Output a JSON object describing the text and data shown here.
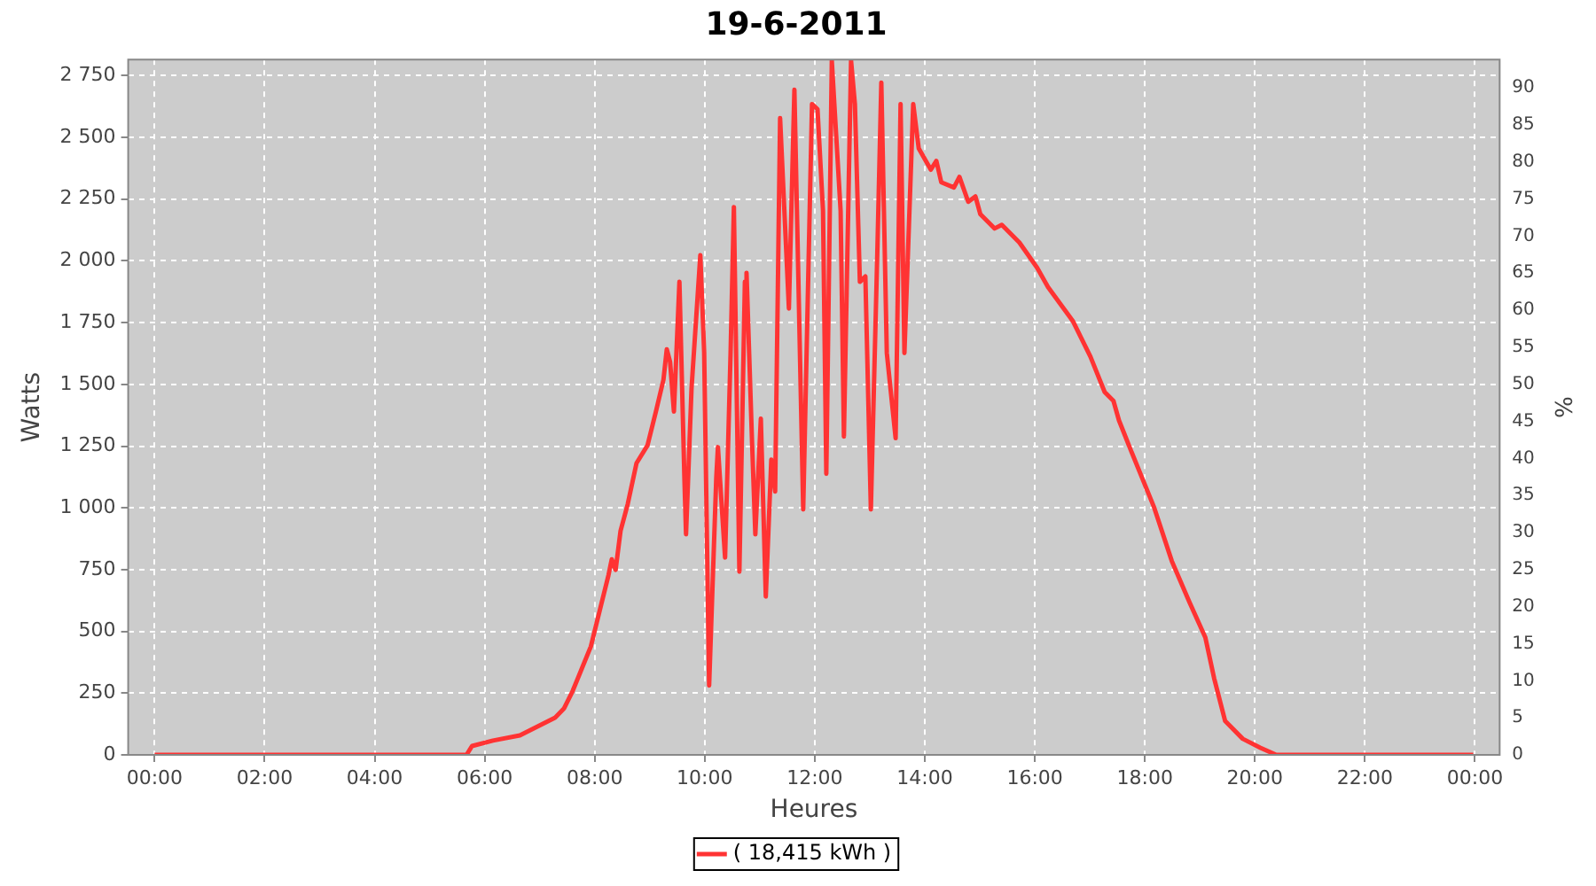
{
  "chart_data": {
    "type": "line",
    "title": "19-6-2011",
    "xlabel": "Heures",
    "ylabel": "Watts",
    "y2label": "%",
    "xlim": [
      -0.48,
      24.45
    ],
    "xticks": [
      {
        "value": 0,
        "label": "00:00"
      },
      {
        "value": 2,
        "label": "02:00"
      },
      {
        "value": 4,
        "label": "04:00"
      },
      {
        "value": 6,
        "label": "06:00"
      },
      {
        "value": 8,
        "label": "08:00"
      },
      {
        "value": 10,
        "label": "10:00"
      },
      {
        "value": 12,
        "label": "12:00"
      },
      {
        "value": 14,
        "label": "14:00"
      },
      {
        "value": 16,
        "label": "16:00"
      },
      {
        "value": 18,
        "label": "18:00"
      },
      {
        "value": 20,
        "label": "20:00"
      },
      {
        "value": 22,
        "label": "22:00"
      },
      {
        "value": 24,
        "label": "00:00"
      }
    ],
    "ylim": [
      0,
      2815
    ],
    "yticks": [
      0,
      250,
      500,
      750,
      {
        "value": 1000,
        "label": "1 000"
      },
      {
        "value": 1250,
        "label": "1 250"
      },
      {
        "value": 1500,
        "label": "1 500"
      },
      {
        "value": 1750,
        "label": "1 750"
      },
      {
        "value": 2000,
        "label": "2 000"
      },
      {
        "value": 2250,
        "label": "2 250"
      },
      {
        "value": 2500,
        "label": "2 500"
      },
      {
        "value": 2750,
        "label": "2 750"
      }
    ],
    "y2lim": [
      0,
      93.8
    ],
    "y2ticks": [
      0,
      5,
      10,
      15,
      20,
      25,
      30,
      35,
      40,
      45,
      50,
      55,
      60,
      65,
      70,
      75,
      80,
      85,
      90
    ],
    "grid": true,
    "legend": "bottom",
    "marker": "none",
    "line_style": "solid",
    "series": [
      {
        "name": "( 18,415 kWh )",
        "color": "#ff3333",
        "x": [
          0,
          5.67,
          5.77,
          6.15,
          6.64,
          6.96,
          7.28,
          7.44,
          7.6,
          7.76,
          7.93,
          8.09,
          8.25,
          8.31,
          8.38,
          8.47,
          8.6,
          8.76,
          8.96,
          9.12,
          9.25,
          9.31,
          9.37,
          9.44,
          9.54,
          9.63,
          9.66,
          9.76,
          9.92,
          9.99,
          10.08,
          10.21,
          10.24,
          10.37,
          10.47,
          10.53,
          10.63,
          10.73,
          10.76,
          10.86,
          10.92,
          11.02,
          11.11,
          11.21,
          11.28,
          11.37,
          11.53,
          11.63,
          11.79,
          11.95,
          12.05,
          12.15,
          12.21,
          12.31,
          12.47,
          12.53,
          12.66,
          12.73,
          12.82,
          12.92,
          13.02,
          13.14,
          13.21,
          13.31,
          13.47,
          13.56,
          13.63,
          13.79,
          13.89,
          14.11,
          14.21,
          14.3,
          14.53,
          14.63,
          14.79,
          14.92,
          15.01,
          15.27,
          15.4,
          15.72,
          16.04,
          16.24,
          16.69,
          17.01,
          17.27,
          17.43,
          17.53,
          17.75,
          18.17,
          18.49,
          18.81,
          19.1,
          19.26,
          19.46,
          19.78,
          20.1,
          20.39,
          23.97
        ],
        "values": [
          0,
          0,
          36,
          58,
          79,
          115,
          151,
          187,
          259,
          346,
          439,
          583,
          727,
          792,
          749,
          907,
          1015,
          1181,
          1253,
          1397,
          1519,
          1642,
          1591,
          1390,
          1915,
          1123,
          893,
          1483,
          2023,
          1627,
          281,
          1123,
          1246,
          799,
          1627,
          2218,
          742,
          1915,
          1951,
          1267,
          893,
          1361,
          641,
          1195,
          1066,
          2578,
          1807,
          2693,
          994,
          2635,
          2614,
          2203,
          1138,
          2810,
          2203,
          1289,
          2810,
          2635,
          1915,
          1937,
          994,
          2059,
          2722,
          1627,
          1282,
          2635,
          1627,
          2635,
          2455,
          2369,
          2405,
          2318,
          2297,
          2340,
          2239,
          2261,
          2189,
          2131,
          2146,
          2074,
          1973,
          1894,
          1757,
          1613,
          1469,
          1433,
          1354,
          1231,
          1001,
          785,
          619,
          475,
          310,
          137,
          65,
          29,
          0,
          0
        ]
      }
    ]
  }
}
